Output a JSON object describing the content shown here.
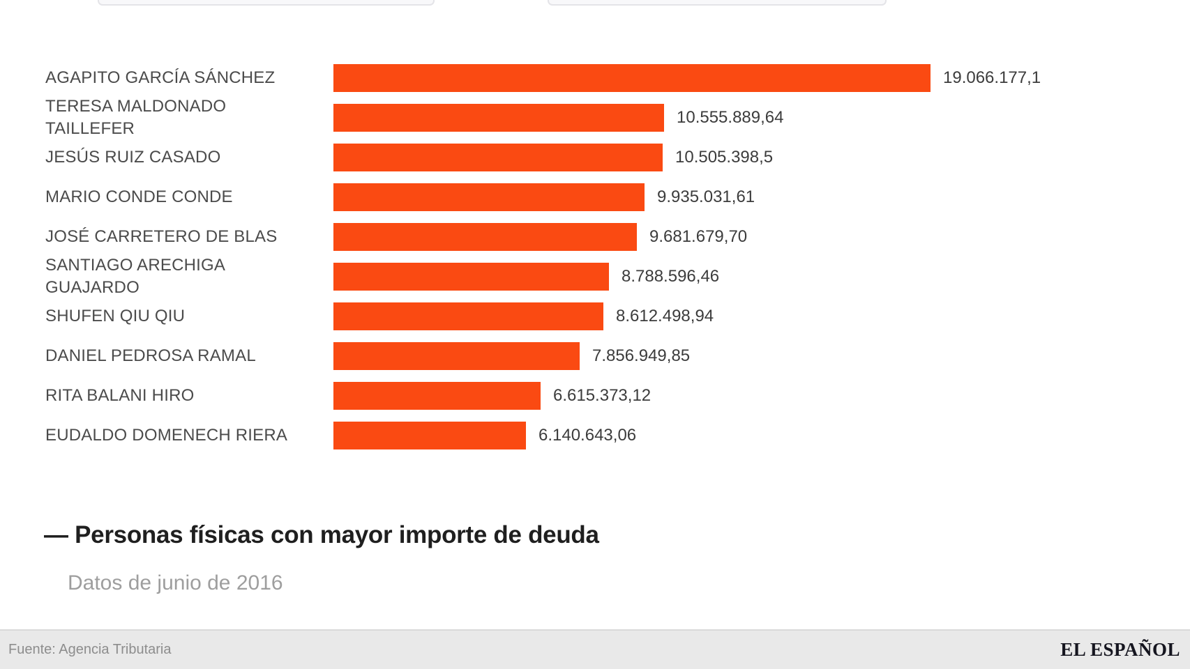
{
  "colors": {
    "bar": "#FA4A12",
    "label_text": "#4b4b4b",
    "value_text": "#3c3c3c",
    "title_text": "#1f1f1f",
    "subtitle_text": "#9e9e9e",
    "footer_background": "#e9e9e9",
    "footer_text": "#8d8d8d",
    "brand_text": "#15151f",
    "cutoff_button_fill": "#f8f8fa",
    "cutoff_button_border": "#e4e4e8"
  },
  "chart_data": {
    "type": "bar",
    "orientation": "horizontal",
    "title": "Personas físicas con mayor importe de deuda",
    "title_display": "— Personas físicas con mayor importe de deuda",
    "subtitle": "Datos de junio de 2016",
    "source": "Fuente: Agencia Tributaria",
    "grid": "off",
    "legend": "none",
    "xlim": [
      0,
      19066177.1
    ],
    "bar_color": "#FA4A12",
    "categories": [
      "AGAPITO GARCÍA SÁNCHEZ",
      "TERESA MALDONADO TAILLEFER",
      "JESÚS RUIZ CASADO",
      "MARIO CONDE CONDE",
      "JOSÉ CARRETERO DE BLAS",
      "SANTIAGO ARECHIGA GUAJARDO",
      "SHUFEN QIU QIU",
      "DANIEL PEDROSA RAMAL",
      "RITA BALANI HIRO",
      "EUDALDO DOMENECH RIERA"
    ],
    "values": [
      19066177.1,
      10555889.64,
      10505398.5,
      9935031.61,
      9681679.7,
      8788596.46,
      8612498.94,
      7856949.85,
      6615373.12,
      6140643.06
    ],
    "value_labels": [
      "19.066.177,1",
      "10.555.889,64",
      "10.505.398,5",
      "9.935.031,61",
      "9.681.679,70",
      "8.788.596,46",
      "8.612.498,94",
      "7.856.949,85",
      "6.615.373,12",
      "6.140.643,06"
    ]
  },
  "footer": {
    "brand": "EL ESPAÑOL"
  }
}
